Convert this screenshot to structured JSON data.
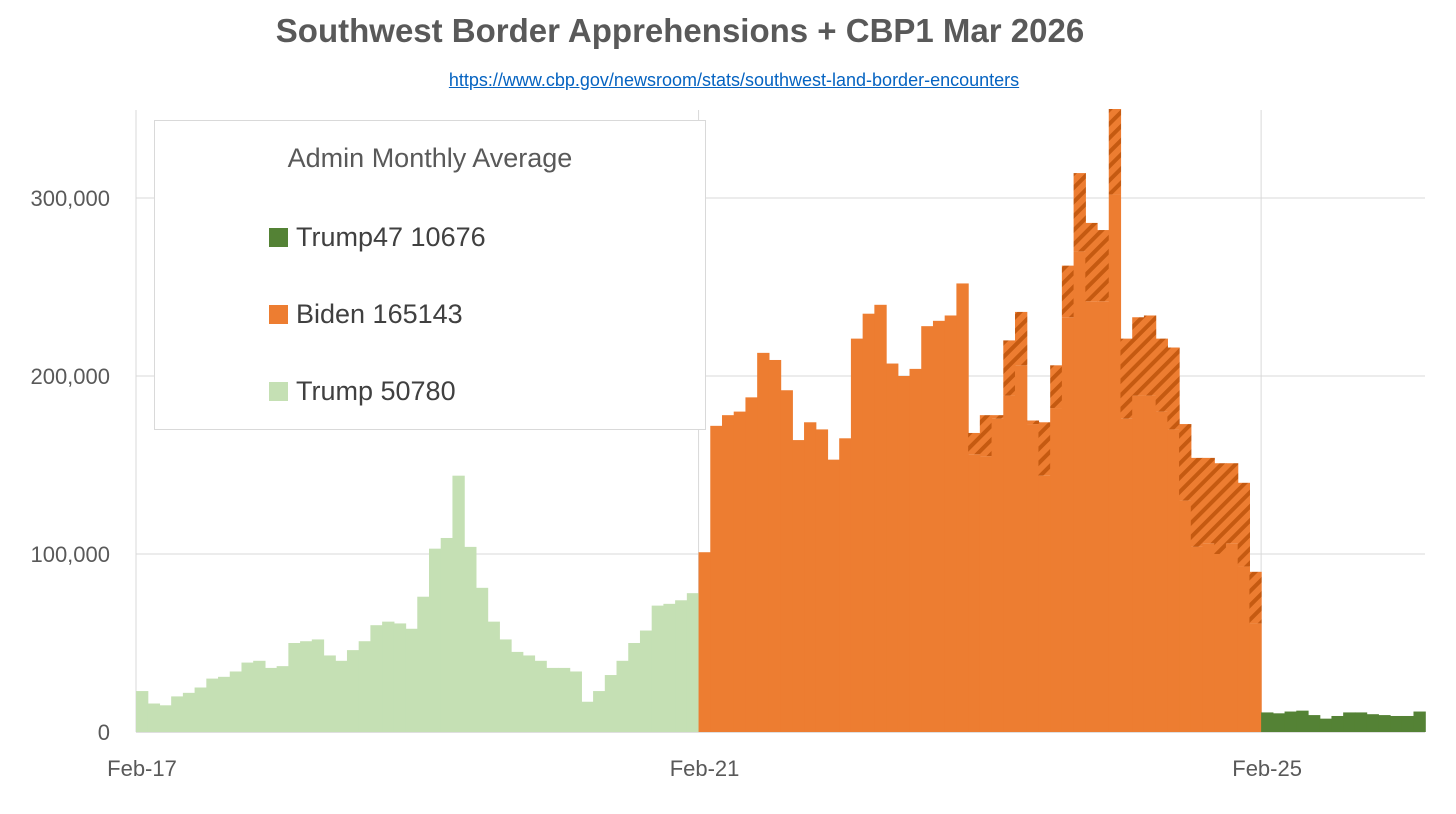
{
  "chart_data": {
    "type": "bar",
    "title": "Southwest Border Apprehensions + CBP1 Mar 2026",
    "source_url": "https://www.cbp.gov/newsroom/stats/southwest-land-border-encounters",
    "x_tick_labels": [
      "Feb-17",
      "Feb-21",
      "Feb-25"
    ],
    "y_tick_labels": [
      "0",
      "100,000",
      "200,000",
      "300,000"
    ],
    "ylim": [
      0,
      350000
    ],
    "y_ticks": [
      0,
      100000,
      200000,
      300000
    ],
    "grid": true,
    "legend": {
      "title": "Admin Monthly Average",
      "placement": "top-left",
      "entries": [
        {
          "label": "Trump47 10676",
          "color": "#548235"
        },
        {
          "label": "Biden 165143",
          "color": "#ed7d31"
        },
        {
          "label": "Trump 50780",
          "color": "#c5e0b4"
        }
      ]
    },
    "series": [
      {
        "key": "trump",
        "color": "#c5e0b4",
        "start": "2017-02",
        "values": [
          23000,
          16000,
          15000,
          20000,
          22000,
          25000,
          30000,
          31000,
          34000,
          39000,
          40000,
          36000,
          37000,
          50000,
          51000,
          52000,
          43000,
          40000,
          46000,
          51000,
          60000,
          62000,
          61000,
          58000,
          76000,
          103000,
          109000,
          144000,
          104000,
          81000,
          62000,
          52000,
          45000,
          43000,
          40000,
          36000,
          36000,
          34000,
          17000,
          23000,
          32000,
          40000,
          50000,
          57000,
          71000,
          72000,
          74000,
          78000
        ]
      },
      {
        "key": "biden",
        "color": "#ed7d31",
        "hatched_color": "#c55a11",
        "start": "2021-02",
        "values": [
          101000,
          172000,
          178000,
          180000,
          188000,
          213000,
          209000,
          192000,
          164000,
          174000,
          170000,
          153000,
          165000,
          221000,
          235000,
          240000,
          207000,
          200000,
          204000,
          228000,
          231000,
          234000,
          252000,
          156000,
          155000,
          176000,
          189000,
          206000,
          173000,
          144000,
          182000,
          233000,
          270000,
          242000,
          242000,
          302000,
          176000,
          189000,
          189000,
          180000,
          170000,
          130000,
          104000,
          106000,
          100000,
          106000,
          93000,
          61000
        ],
        "cbp1_values": [
          0,
          0,
          0,
          0,
          0,
          0,
          0,
          0,
          0,
          0,
          0,
          0,
          0,
          0,
          0,
          0,
          0,
          0,
          0,
          0,
          0,
          0,
          0,
          12000,
          23000,
          2000,
          31000,
          30000,
          2000,
          30000,
          24000,
          29000,
          44000,
          44000,
          40000,
          48000,
          45000,
          44000,
          45000,
          41000,
          46000,
          43000,
          50000,
          48000,
          51000,
          45000,
          47000,
          29000
        ]
      },
      {
        "key": "trump47",
        "color": "#548235",
        "start": "2025-02",
        "values": [
          11000,
          10500,
          11500,
          12000,
          9500,
          7500,
          9000,
          11000,
          11000,
          10000,
          9500,
          9000,
          9000,
          11500
        ]
      }
    ]
  }
}
